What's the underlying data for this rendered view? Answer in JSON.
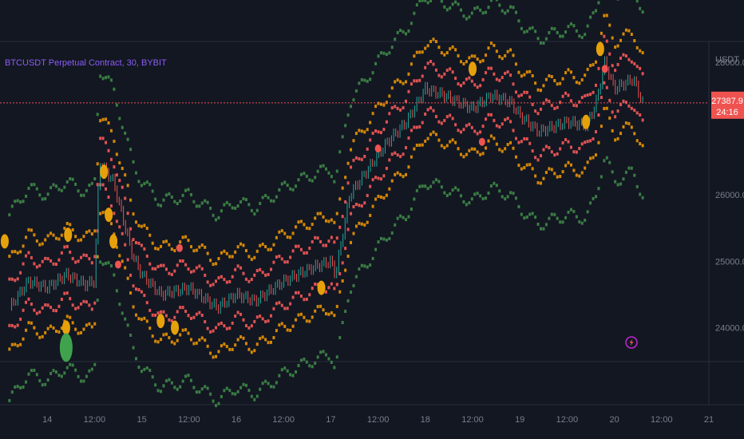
{
  "symbol_title": "BTCUSDT Perpetual Contract, 30, BYBIT",
  "currency": "USDT",
  "last_price": {
    "value": "27387.9",
    "countdown": "24:16",
    "color": "#ef5350"
  },
  "colors": {
    "background": "#131722",
    "outer_band": "#3a7d44",
    "mid_band": "#d48806",
    "inner_band": "#e05252",
    "candle_up": "#26a69a",
    "candle_down": "#ef5350",
    "marker_orange": "#e6a10a",
    "marker_red": "#ef5350",
    "marker_green": "#3fa34d"
  },
  "icons": {
    "alert": "lightning-icon"
  },
  "chart_data": {
    "type": "line",
    "title": "BTCUSDT Perpetual Contract, 30, BYBIT",
    "ylabel": "USDT",
    "ylim": [
      23500,
      28300
    ],
    "y_ticks": [
      "28000.0",
      "26000.0",
      "25000.0",
      "24000.0"
    ],
    "x_ticks": [
      "14",
      "12:00",
      "15",
      "12:00",
      "16",
      "12:00",
      "17",
      "12:00",
      "18",
      "12:00",
      "19",
      "12:00",
      "20",
      "12:00",
      "21"
    ],
    "price_line": 27387.9,
    "x_days": [
      13.6,
      13.8,
      14.0,
      14.2,
      14.4,
      14.5,
      14.55,
      14.7,
      14.9,
      15.0,
      15.2,
      15.5,
      15.8,
      16.0,
      16.2,
      16.5,
      16.8,
      17.0,
      17.05,
      17.2,
      17.4,
      17.6,
      17.8,
      18.0,
      18.2,
      18.5,
      18.7,
      18.9,
      19.0,
      19.2,
      19.5,
      19.7,
      19.8,
      19.9,
      20.0,
      20.2,
      20.3
    ],
    "series": [
      {
        "name": "",
        "values": [
          24300,
          24700,
          24600,
          24800,
          24650,
          24700,
          26500,
          26200,
          25100,
          24800,
          24500,
          24600,
          24300,
          24500,
          24400,
          24700,
          24900,
          25000,
          24800,
          26000,
          26400,
          26800,
          27100,
          27600,
          27500,
          27300,
          27500,
          27400,
          27200,
          26950,
          27100,
          27050,
          27350,
          28000,
          27600,
          27750,
          27387.9
        ]
      }
    ],
    "band_offsets": [
      {
        "name": "",
        "offset": 1400
      },
      {
        "name": "",
        "offset": 700
      },
      {
        "name": "",
        "offset": 350
      }
    ],
    "markers": [
      {
        "x": 13.55,
        "y": 25300,
        "color": "orange"
      },
      {
        "x": 14.2,
        "y": 24000,
        "color": "orange"
      },
      {
        "x": 14.2,
        "y": 23700,
        "color": "green"
      },
      {
        "x": 14.22,
        "y": 25400,
        "color": "orange"
      },
      {
        "x": 14.6,
        "y": 26350,
        "color": "orange"
      },
      {
        "x": 14.65,
        "y": 25700,
        "color": "orange"
      },
      {
        "x": 14.7,
        "y": 25300,
        "color": "orange"
      },
      {
        "x": 14.75,
        "y": 24950,
        "color": "red"
      },
      {
        "x": 15.2,
        "y": 24100,
        "color": "orange"
      },
      {
        "x": 15.35,
        "y": 24000,
        "color": "orange"
      },
      {
        "x": 15.4,
        "y": 25200,
        "color": "red"
      },
      {
        "x": 16.9,
        "y": 24600,
        "color": "orange"
      },
      {
        "x": 17.5,
        "y": 26700,
        "color": "red"
      },
      {
        "x": 18.5,
        "y": 27900,
        "color": "orange"
      },
      {
        "x": 18.6,
        "y": 26800,
        "color": "red"
      },
      {
        "x": 19.7,
        "y": 27100,
        "color": "orange"
      },
      {
        "x": 19.85,
        "y": 28200,
        "color": "orange"
      },
      {
        "x": 19.9,
        "y": 27900,
        "color": "red"
      }
    ],
    "grid": false,
    "legend": "none"
  }
}
